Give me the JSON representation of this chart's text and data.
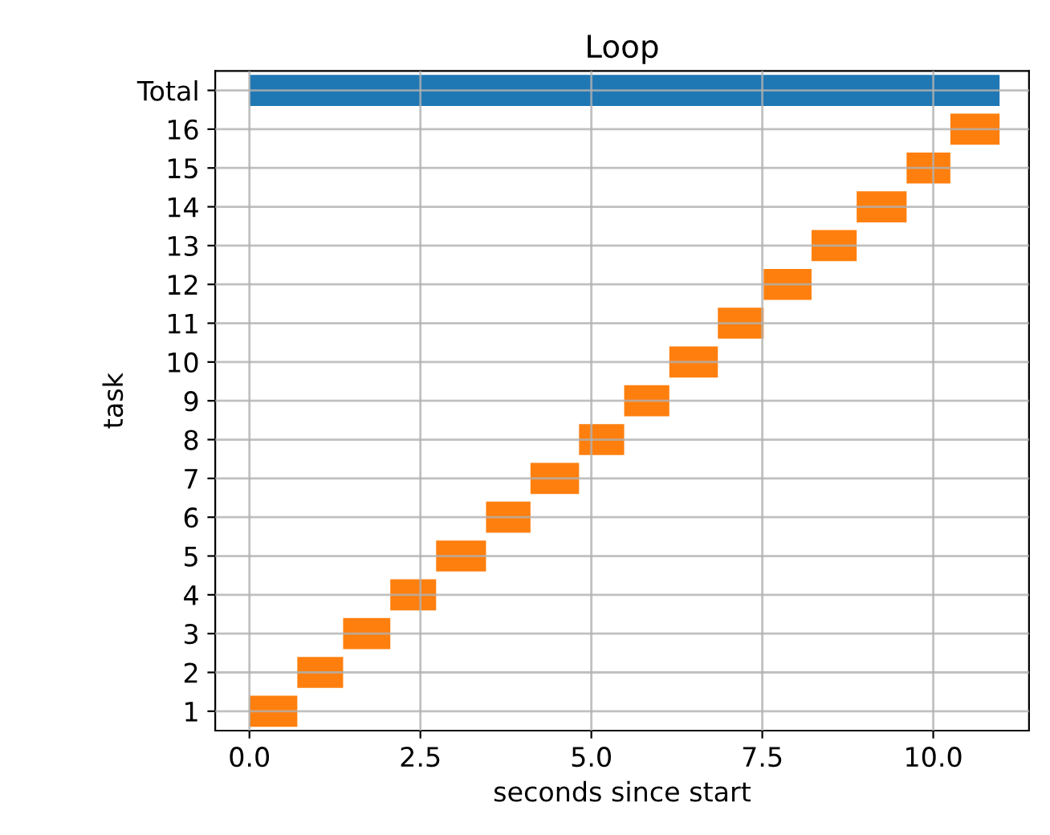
{
  "chart_data": {
    "type": "bar",
    "orientation": "horizontal",
    "title": "Loop",
    "xlabel": "seconds since start",
    "ylabel": "task",
    "categories": [
      "Total",
      "16",
      "15",
      "14",
      "13",
      "12",
      "11",
      "10",
      "9",
      "8",
      "7",
      "6",
      "5",
      "4",
      "3",
      "2",
      "1"
    ],
    "base": [
      0,
      10.25,
      9.61,
      8.88,
      8.22,
      7.52,
      6.85,
      6.14,
      5.48,
      4.82,
      4.11,
      3.46,
      2.73,
      2.06,
      1.37,
      0.7,
      0
    ],
    "values": [
      10.97,
      0.72,
      0.64,
      0.73,
      0.66,
      0.7,
      0.67,
      0.71,
      0.66,
      0.66,
      0.71,
      0.65,
      0.73,
      0.67,
      0.69,
      0.67,
      0.7
    ],
    "colors": [
      "#1f77b4",
      "#ff7f0e",
      "#ff7f0e",
      "#ff7f0e",
      "#ff7f0e",
      "#ff7f0e",
      "#ff7f0e",
      "#ff7f0e",
      "#ff7f0e",
      "#ff7f0e",
      "#ff7f0e",
      "#ff7f0e",
      "#ff7f0e",
      "#ff7f0e",
      "#ff7f0e",
      "#ff7f0e",
      "#ff7f0e"
    ],
    "xlim": [
      -0.5,
      11.4
    ],
    "xticks": [
      {
        "value": 0,
        "label": "0.0"
      },
      {
        "value": 2.5,
        "label": "2.5"
      },
      {
        "value": 5,
        "label": "5.0"
      },
      {
        "value": 7.5,
        "label": "7.5"
      },
      {
        "value": 10,
        "label": "10.0"
      }
    ],
    "grid": true,
    "legend": false
  }
}
